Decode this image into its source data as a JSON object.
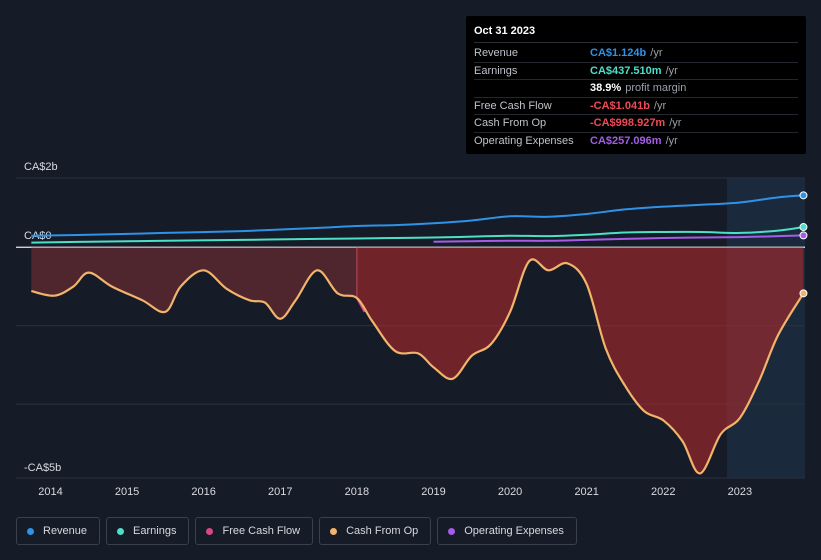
{
  "tooltip": {
    "date": "Oct 31 2023",
    "rows": [
      {
        "label": "Revenue",
        "value": "CA$1.124b",
        "unit": "/yr",
        "color": "#2e93e8"
      },
      {
        "label": "Earnings",
        "value": "CA$437.510m",
        "unit": "/yr",
        "color": "#4de0c8"
      },
      {
        "label": "",
        "value": "38.9%",
        "unit": "profit margin",
        "color": "#ffffff"
      },
      {
        "label": "Free Cash Flow",
        "value": "-CA$1.041b",
        "unit": "/yr",
        "color": "#ef4a57"
      },
      {
        "label": "Cash From Op",
        "value": "-CA$998.927m",
        "unit": "/yr",
        "color": "#ef4a57"
      },
      {
        "label": "Operating Expenses",
        "value": "CA$257.096m",
        "unit": "/yr",
        "color": "#a35de8"
      }
    ]
  },
  "legend": [
    {
      "label": "Revenue",
      "color": "#2e93e8"
    },
    {
      "label": "Earnings",
      "color": "#4de0c8"
    },
    {
      "label": "Free Cash Flow",
      "color": "#d6488a"
    },
    {
      "label": "Cash From Op",
      "color": "#f2b36b"
    },
    {
      "label": "Operating Expenses",
      "color": "#a35de8"
    }
  ],
  "chart_data": {
    "type": "line",
    "ylabels": [
      "CA$2b",
      "CA$0",
      "-CA$5b"
    ],
    "ylim": [
      -5,
      1.5
    ],
    "xlim": [
      2013.55,
      2023.85
    ],
    "xticks": [
      "2014",
      "2015",
      "2016",
      "2017",
      "2018",
      "2019",
      "2020",
      "2021",
      "2022",
      "2023"
    ],
    "highlight_from": 2022.83,
    "series": [
      {
        "name": "Revenue",
        "color": "#2e93e8",
        "x": [
          2013.75,
          2014.5,
          2015.5,
          2016.5,
          2017.5,
          2018.0,
          2018.5,
          2019.0,
          2019.5,
          2020.0,
          2020.5,
          2021.0,
          2021.5,
          2022.0,
          2022.5,
          2023.0,
          2023.5,
          2023.83
        ],
        "y": [
          0.25,
          0.27,
          0.31,
          0.35,
          0.42,
          0.46,
          0.48,
          0.52,
          0.58,
          0.67,
          0.66,
          0.72,
          0.82,
          0.88,
          0.92,
          0.97,
          1.08,
          1.124
        ]
      },
      {
        "name": "Earnings",
        "color": "#4de0c8",
        "x": [
          2013.75,
          2014.5,
          2015.5,
          2016.5,
          2017.5,
          2018.0,
          2018.5,
          2019.0,
          2019.5,
          2020.0,
          2020.5,
          2021.0,
          2021.5,
          2022.0,
          2022.5,
          2023.0,
          2023.5,
          2023.83
        ],
        "y": [
          0.1,
          0.12,
          0.14,
          0.16,
          0.18,
          0.19,
          0.2,
          0.21,
          0.23,
          0.25,
          0.24,
          0.27,
          0.32,
          0.33,
          0.33,
          0.31,
          0.36,
          0.4375
        ]
      },
      {
        "name": "Operating Expenses",
        "color": "#a35de8",
        "x": [
          2019.0,
          2019.5,
          2020.0,
          2020.5,
          2021.0,
          2021.5,
          2022.0,
          2022.5,
          2023.0,
          2023.5,
          2023.83
        ],
        "y": [
          0.12,
          0.13,
          0.14,
          0.14,
          0.16,
          0.18,
          0.2,
          0.21,
          0.22,
          0.24,
          0.257
        ]
      },
      {
        "name": "Free Cash Flow",
        "color": "#d6488a",
        "x": [
          2018.0,
          2018.1
        ],
        "y": [
          -1.1,
          -1.4
        ]
      },
      {
        "name": "Cash From Op",
        "color": "#f2b36b",
        "x": [
          2013.75,
          2014.05,
          2014.3,
          2014.5,
          2014.8,
          2015.2,
          2015.5,
          2015.7,
          2016.0,
          2016.3,
          2016.6,
          2016.8,
          2017.0,
          2017.2,
          2017.48,
          2017.75,
          2018.0,
          2018.2,
          2018.5,
          2018.8,
          2019.0,
          2019.25,
          2019.5,
          2019.75,
          2020.0,
          2020.25,
          2020.5,
          2020.75,
          2021.0,
          2021.25,
          2021.5,
          2021.75,
          2022.0,
          2022.25,
          2022.48,
          2022.75,
          2023.0,
          2023.25,
          2023.5,
          2023.83
        ],
        "y": [
          -0.95,
          -1.05,
          -0.85,
          -0.55,
          -0.85,
          -1.15,
          -1.4,
          -0.85,
          -0.5,
          -0.9,
          -1.15,
          -1.2,
          -1.55,
          -1.15,
          -0.5,
          -1.0,
          -1.1,
          -1.6,
          -2.25,
          -2.3,
          -2.6,
          -2.85,
          -2.35,
          -2.1,
          -1.4,
          -0.3,
          -0.5,
          -0.35,
          -0.8,
          -2.2,
          -3.0,
          -3.55,
          -3.75,
          -4.2,
          -4.9,
          -4.05,
          -3.7,
          -2.9,
          -1.9,
          -0.999
        ]
      }
    ]
  }
}
